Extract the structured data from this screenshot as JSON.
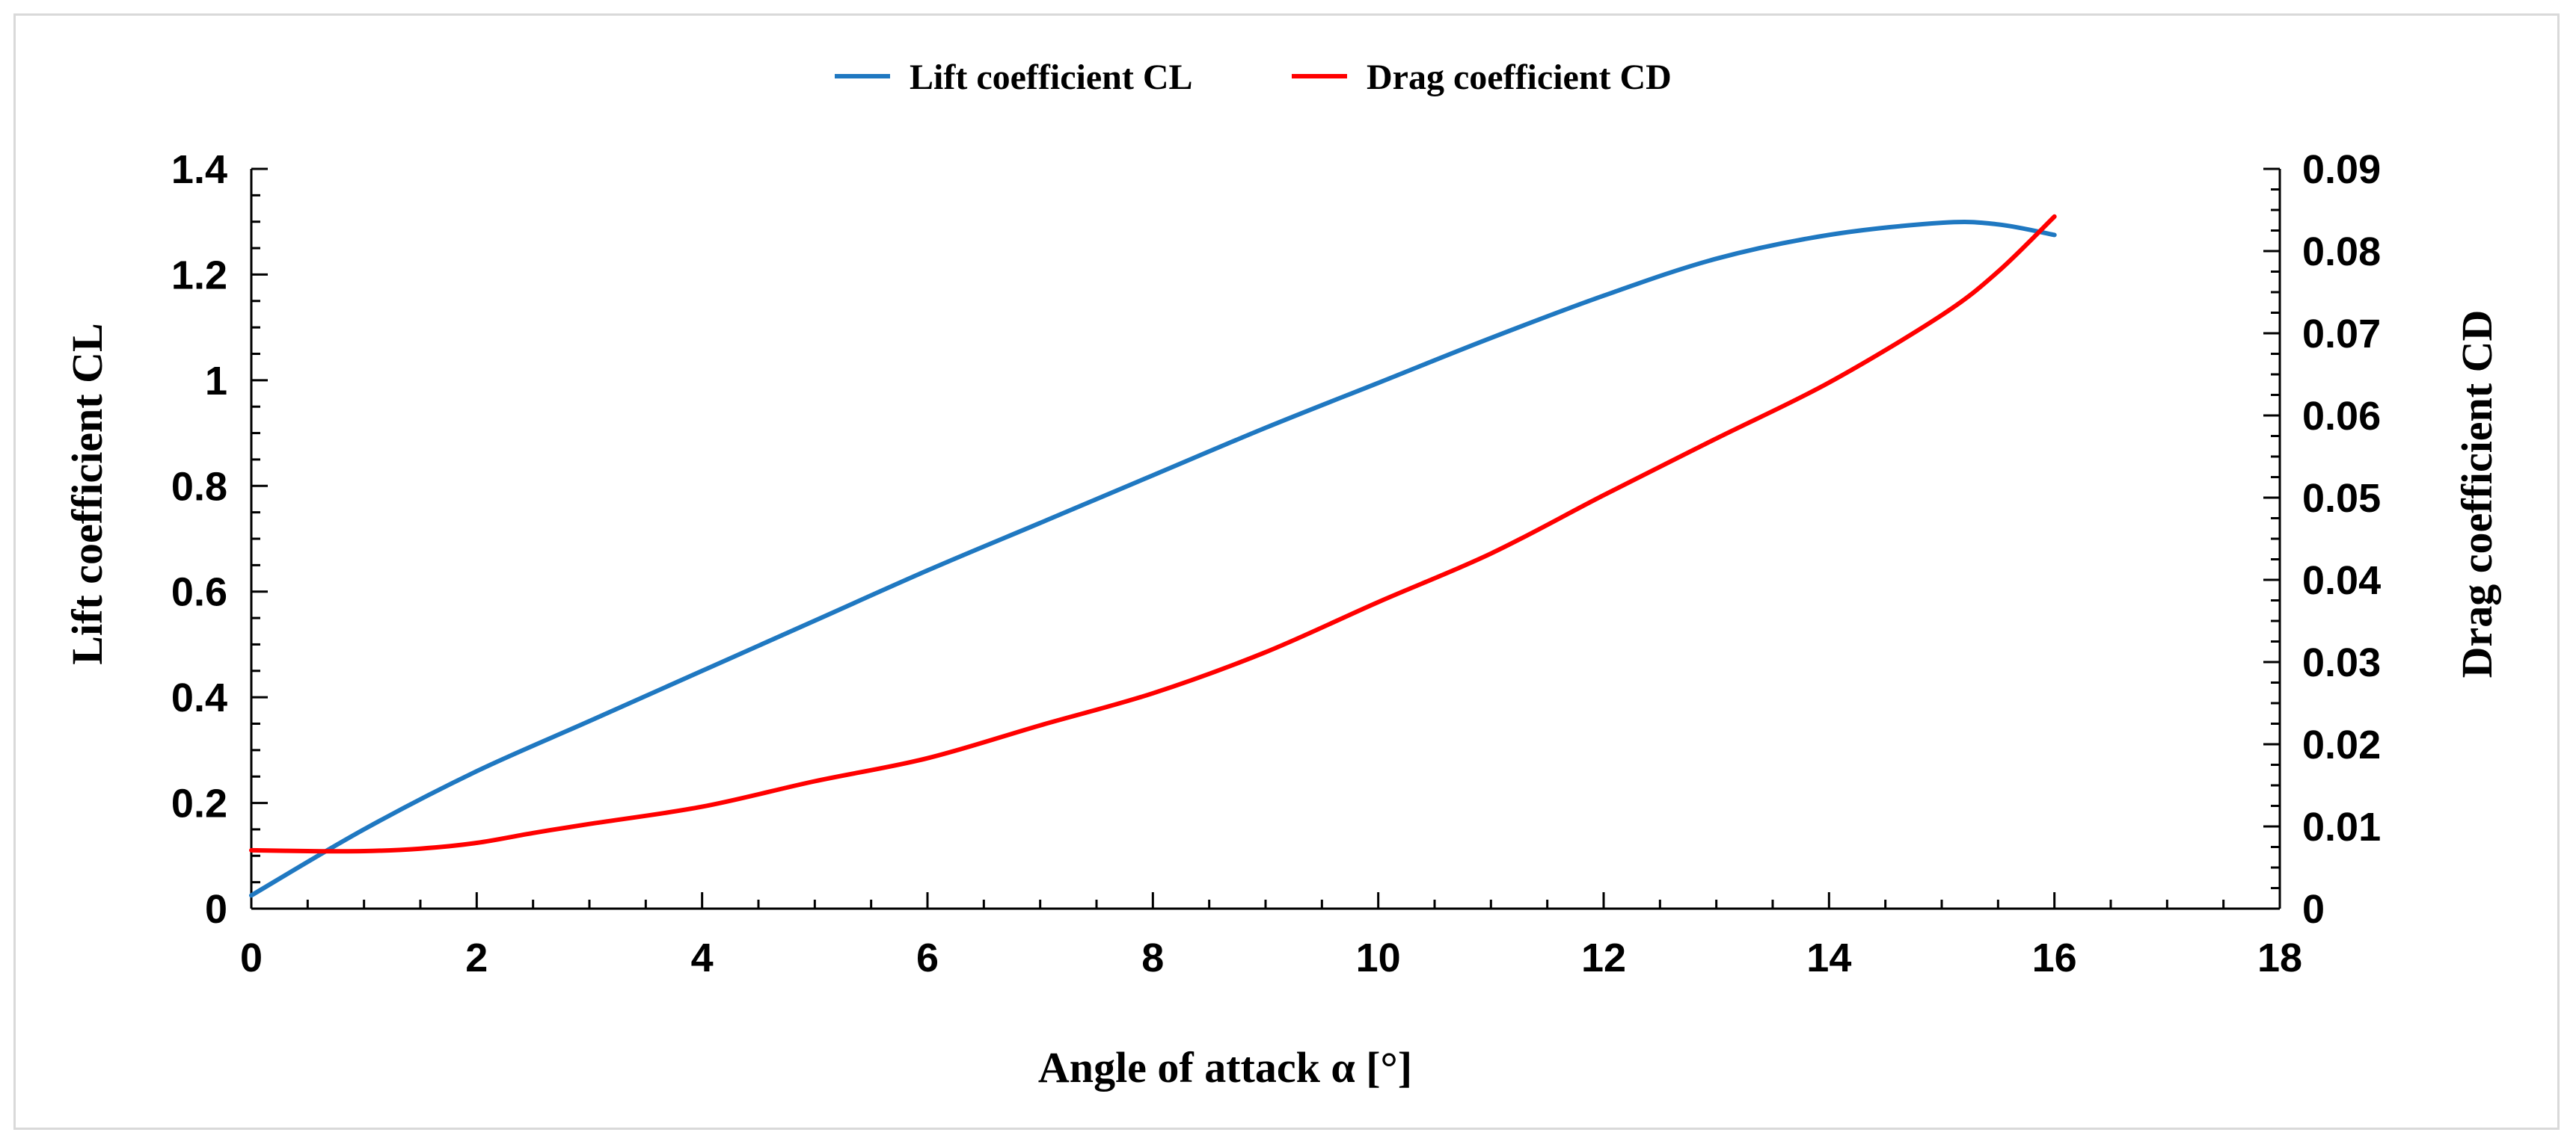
{
  "chart_data": {
    "type": "line",
    "title": "",
    "xlabel": "Angle of attack α [°]",
    "ylabel": "Lift coefficient CL",
    "y2label": "Drag coefficient CD",
    "xlim": [
      0,
      18
    ],
    "ylim": [
      0,
      1.4
    ],
    "y2lim": [
      0,
      0.09
    ],
    "x_ticks": [
      0,
      2,
      4,
      6,
      8,
      10,
      12,
      14,
      16,
      18
    ],
    "x_tick_labels": [
      "0",
      "2",
      "4",
      "6",
      "8",
      "10",
      "12",
      "14",
      "16",
      "18"
    ],
    "y_ticks": [
      0,
      0.2,
      0.4,
      0.6,
      0.8,
      1.0,
      1.2,
      1.4
    ],
    "y_tick_labels": [
      "0",
      "0.2",
      "0.4",
      "0.6",
      "0.8",
      "1",
      "1.2",
      "1.4"
    ],
    "y2_ticks": [
      0,
      0.01,
      0.02,
      0.03,
      0.04,
      0.05,
      0.06,
      0.07,
      0.08,
      0.09
    ],
    "y2_tick_labels": [
      "0",
      "0.01",
      "0.02",
      "0.03",
      "0.04",
      "0.05",
      "0.06",
      "0.07",
      "0.08",
      "0.09"
    ],
    "grid": false,
    "legend_position": "top-center",
    "series": [
      {
        "name": "Lift coefficient CL",
        "axis": "left",
        "color": "#1f78c1",
        "x": [
          0,
          1,
          2,
          3,
          4,
          5,
          6,
          7,
          8,
          9,
          10,
          11,
          12,
          13,
          14,
          15,
          15.5,
          16
        ],
        "values": [
          0.025,
          0.15,
          0.26,
          0.355,
          0.45,
          0.545,
          0.64,
          0.73,
          0.82,
          0.91,
          0.995,
          1.08,
          1.16,
          1.23,
          1.275,
          1.298,
          1.295,
          1.275
        ]
      },
      {
        "name": "Drag coefficient CD",
        "axis": "right",
        "color": "#ff0000",
        "x": [
          0,
          0.5,
          1,
          1.5,
          2,
          2.5,
          3,
          4,
          5,
          6,
          7,
          8,
          9,
          10,
          11,
          12,
          13,
          14,
          15,
          15.5,
          16
        ],
        "values": [
          0.0071,
          0.007,
          0.007,
          0.0073,
          0.008,
          0.0092,
          0.0103,
          0.0124,
          0.0155,
          0.0183,
          0.0223,
          0.0262,
          0.0312,
          0.0373,
          0.0432,
          0.0503,
          0.0572,
          0.064,
          0.0722,
          0.0775,
          0.0842
        ]
      }
    ]
  }
}
